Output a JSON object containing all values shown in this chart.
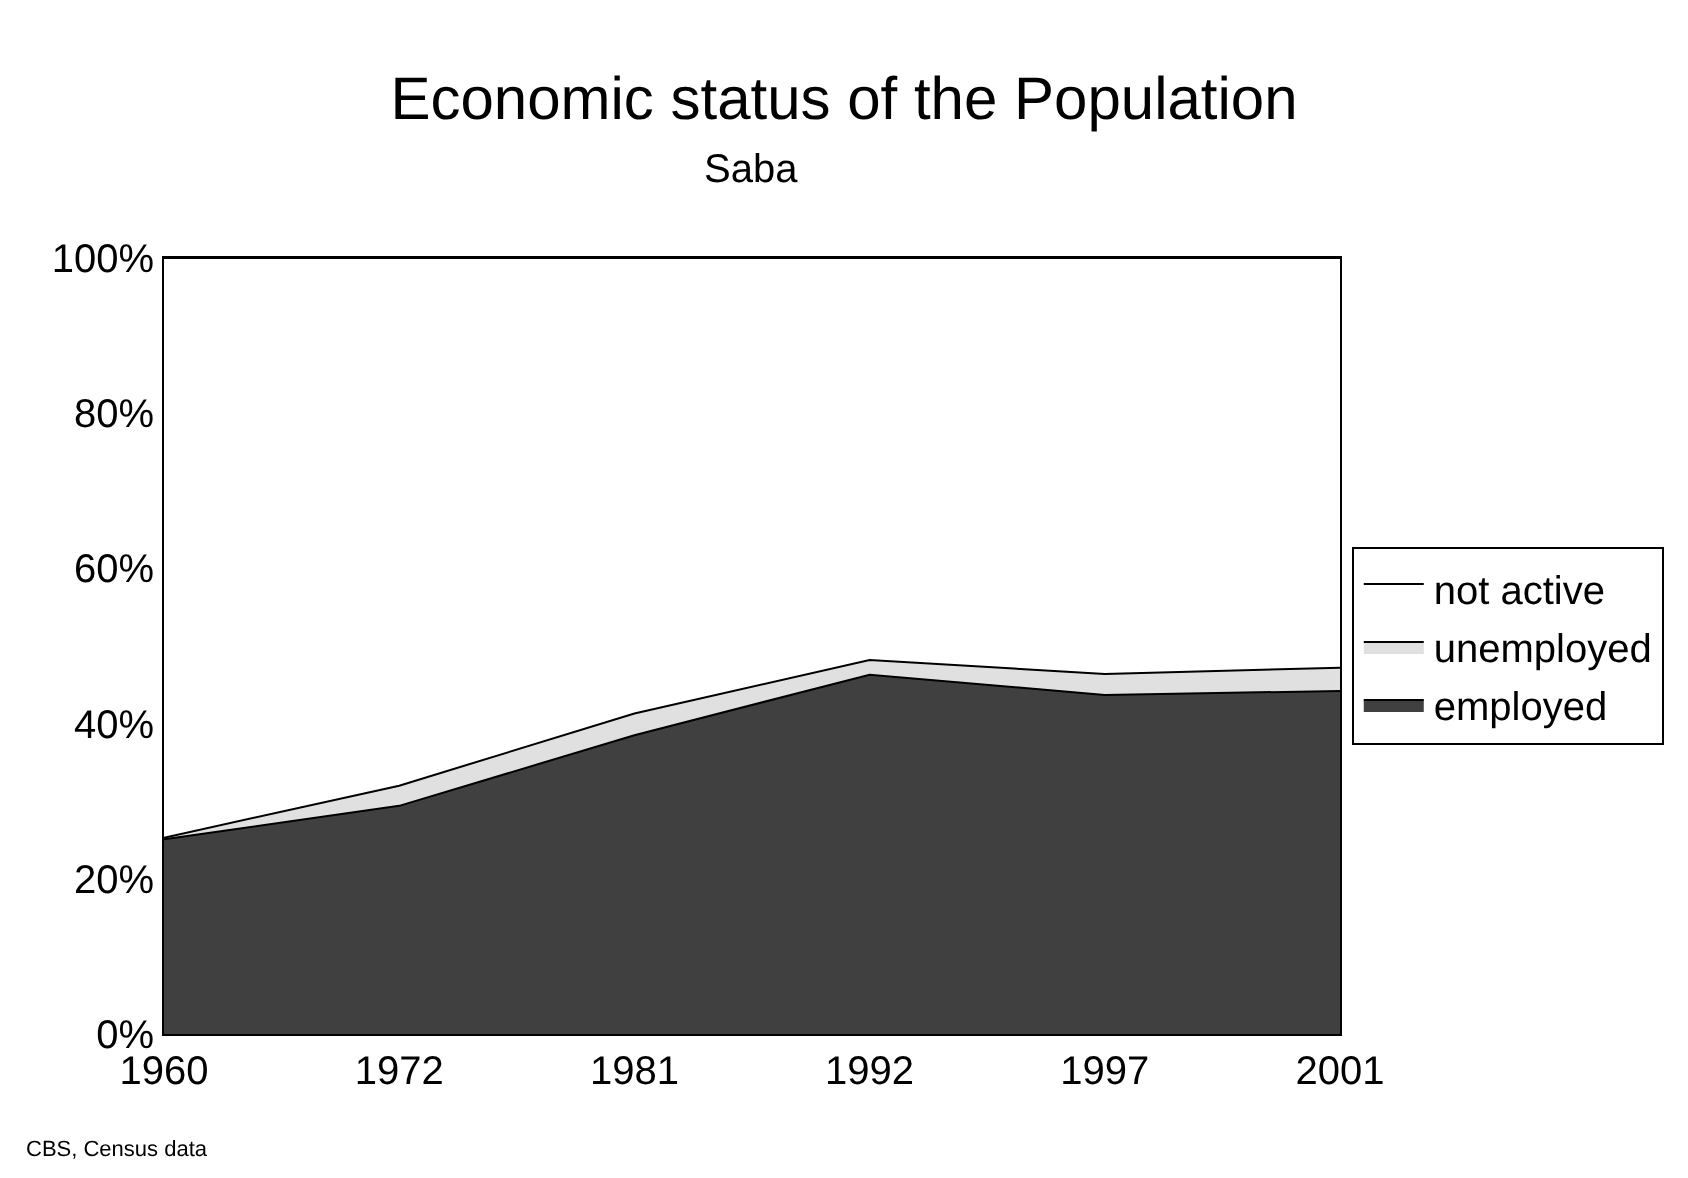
{
  "chart_data": {
    "type": "area",
    "stacked": true,
    "title": "Economic status of the Population",
    "subtitle": "Saba",
    "categories": [
      "1960",
      "1972",
      "1981",
      "1992",
      "1997",
      "2001"
    ],
    "series": [
      {
        "name": "employed",
        "color": "#404040",
        "values": [
          25.1,
          29.4,
          38.5,
          46.3,
          43.7,
          44.2
        ]
      },
      {
        "name": "unemployed",
        "color": "#e0e0e0",
        "values": [
          0.2,
          2.6,
          2.8,
          1.9,
          2.7,
          3.0
        ]
      },
      {
        "name": "not active",
        "color": "#ffffff",
        "values": [
          74.7,
          68.0,
          58.7,
          51.8,
          53.6,
          52.8
        ]
      }
    ],
    "ylim": [
      0,
      100
    ],
    "yticks": [
      {
        "value": 0,
        "label": "0%"
      },
      {
        "value": 20,
        "label": "20%"
      },
      {
        "value": 40,
        "label": "40%"
      },
      {
        "value": 60,
        "label": "60%"
      },
      {
        "value": 80,
        "label": "80%"
      },
      {
        "value": 100,
        "label": "100%"
      }
    ],
    "legend": "right",
    "annotations": [
      "CBS, Census data"
    ]
  }
}
